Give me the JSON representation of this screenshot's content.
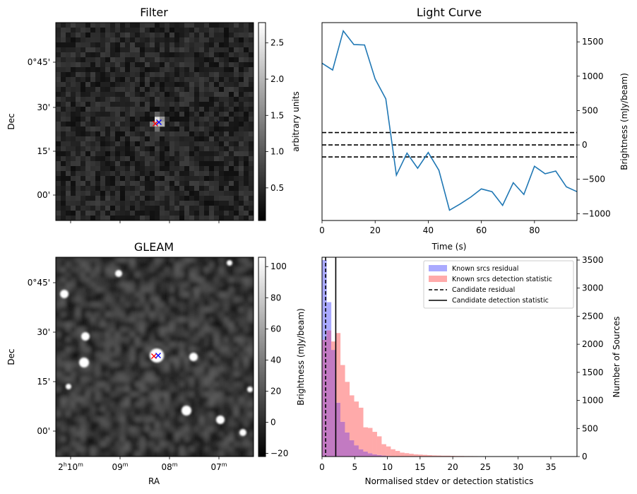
{
  "colors": {
    "line": "#1f77b4",
    "hist_residual": "#aaaaff",
    "hist_detection": "#ffaaaa",
    "hist_overlap": "#c27ac2",
    "cross_red": "#ff0000",
    "cross_blue": "#0000ff"
  },
  "chart_data": [
    {
      "id": "filter",
      "type": "heatmap",
      "title": "Filter",
      "xlabel": "",
      "ylabel": "Dec",
      "colormap": "gray",
      "yticks": [
        "0°45'",
        "30'",
        "15'",
        "00'"
      ],
      "colorbar": {
        "label": "arbitrary units",
        "range": [
          0.05,
          2.78
        ],
        "ticks": [
          0.5,
          1.0,
          1.5,
          2.0,
          2.5
        ],
        "tick_labels": [
          "0.5",
          "1.0",
          "1.5",
          "2.0",
          "2.5"
        ]
      },
      "markers": [
        {
          "symbol": "x",
          "color": "red"
        },
        {
          "symbol": "x",
          "color": "blue"
        }
      ]
    },
    {
      "id": "lightcurve",
      "type": "line",
      "title": "Light Curve",
      "xlabel": "Time (s)",
      "ylabel": "Brightness (mJy/beam)",
      "xlim": [
        0,
        96
      ],
      "ylim": [
        -1100,
        1780
      ],
      "xticks": [
        0,
        20,
        40,
        60,
        80
      ],
      "yticks": [
        -1000,
        -500,
        0,
        500,
        1000,
        1500
      ],
      "x": [
        0,
        4,
        8,
        12,
        16,
        20,
        24,
        28,
        32,
        36,
        40,
        44,
        48,
        52,
        56,
        60,
        64,
        68,
        72,
        76,
        80,
        84,
        88,
        92,
        96
      ],
      "values": [
        1190,
        1090,
        1660,
        1460,
        1455,
        960,
        670,
        -440,
        -120,
        -340,
        -110,
        -370,
        -950,
        -860,
        -760,
        -640,
        -680,
        -880,
        -550,
        -720,
        -310,
        -420,
        -380,
        -610,
        -680
      ],
      "hlines": [
        180,
        0,
        -175
      ]
    },
    {
      "id": "gleam",
      "type": "heatmap",
      "title": "GLEAM",
      "xlabel": "RA",
      "ylabel": "Dec",
      "colormap": "gray",
      "xticks": [
        {
          "main": "2",
          "sup1": "h",
          "mid": "10",
          "sup2": "m"
        },
        {
          "main": "",
          "sup1": "",
          "mid": "09",
          "sup2": "m"
        },
        {
          "main": "",
          "sup1": "",
          "mid": "08",
          "sup2": "m"
        },
        {
          "main": "",
          "sup1": "",
          "mid": "07",
          "sup2": "m"
        }
      ],
      "yticks": [
        "0°45'",
        "30'",
        "15'",
        "00'"
      ],
      "colorbar": {
        "label": "Brightness (mJy/beam)",
        "range": [
          -22,
          106
        ],
        "ticks": [
          -20,
          0,
          20,
          40,
          60,
          80,
          100
        ],
        "tick_labels": [
          "−20",
          "0",
          "20",
          "40",
          "60",
          "80",
          "100"
        ]
      },
      "markers": [
        {
          "symbol": "x",
          "color": "red"
        },
        {
          "symbol": "x",
          "color": "blue"
        }
      ]
    },
    {
      "id": "histogram",
      "type": "bar",
      "title": "",
      "xlabel": "Normalised stdev or detection statistics",
      "ylabel": "Number of Sources",
      "xlim": [
        0,
        39
      ],
      "ylim": [
        0,
        3550
      ],
      "xticks": [
        0,
        5,
        10,
        15,
        20,
        25,
        30,
        35
      ],
      "yticks": [
        0,
        500,
        1000,
        1500,
        2000,
        2500,
        3000,
        3500
      ],
      "bin_width": 0.7,
      "legend_position": "top-right",
      "series": [
        {
          "name": "Known srcs residual",
          "start": 0.0,
          "values": [
            3500,
            2750,
            1900,
            960,
            620,
            430,
            290,
            200,
            130,
            90,
            60,
            40,
            28,
            18,
            10,
            6,
            4
          ]
        },
        {
          "name": "Known srcs detection statistic",
          "start": 0.0,
          "values": [
            2080,
            2250,
            2050,
            2200,
            1630,
            1330,
            1090,
            980,
            870,
            520,
            510,
            440,
            360,
            220,
            180,
            130,
            100,
            70,
            60,
            50,
            40,
            35,
            30,
            25,
            20,
            18,
            15,
            15,
            12,
            10,
            10,
            8,
            8,
            7,
            6,
            6,
            5,
            5,
            4,
            4,
            3,
            3,
            3,
            2,
            2,
            2,
            2,
            2,
            2,
            2,
            1,
            1,
            1,
            1,
            1,
            1,
            1,
            1
          ]
        }
      ],
      "vlines": [
        {
          "name": "Candidate residual",
          "x": 0.55,
          "style": "dashed"
        },
        {
          "name": "Candidate detection statistic",
          "x": 2.1,
          "style": "solid"
        }
      ]
    }
  ]
}
